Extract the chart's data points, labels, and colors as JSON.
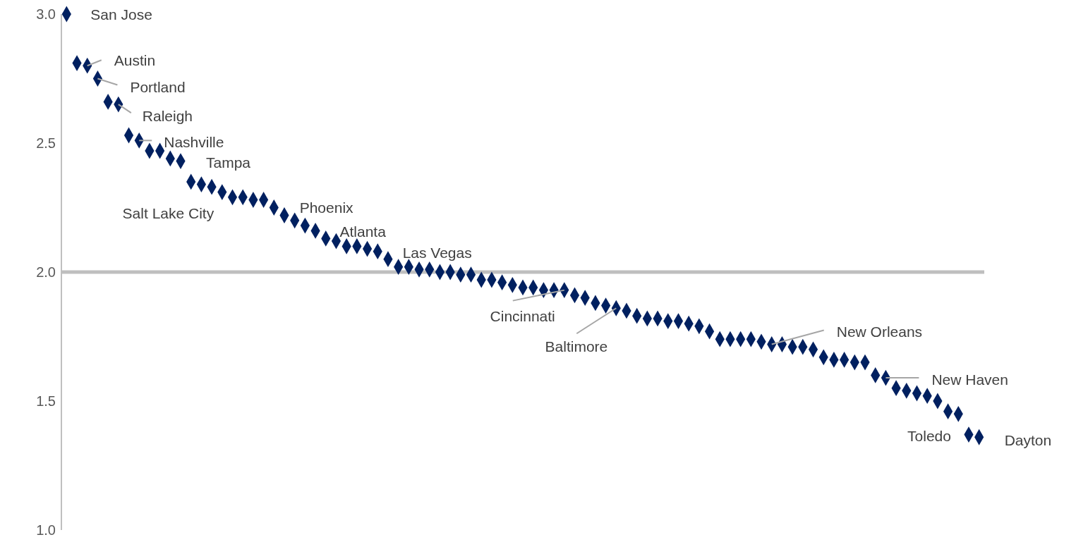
{
  "chart_data": {
    "type": "scatter",
    "categories": [
      null,
      null,
      null,
      null,
      null,
      null,
      null,
      null,
      null,
      null,
      null,
      null,
      null,
      null,
      null,
      null,
      null,
      null,
      null,
      null,
      null,
      null,
      null,
      null,
      null,
      null,
      null,
      null,
      null,
      null,
      null,
      null,
      null,
      null,
      null,
      null,
      null,
      null,
      null,
      null,
      null,
      null,
      null,
      null,
      null,
      null,
      null,
      null,
      null,
      null,
      null,
      null,
      null,
      null,
      null,
      null,
      null,
      null,
      null,
      null,
      null,
      null,
      null,
      null,
      null,
      null,
      null,
      null,
      null,
      null,
      null,
      null,
      null,
      null,
      null,
      null,
      null,
      null,
      null,
      null,
      null,
      null,
      null,
      null,
      null,
      null,
      null,
      null,
      null
    ],
    "series": [
      {
        "color": "#002060",
        "values": [
          3.0,
          2.81,
          2.8,
          2.75,
          2.66,
          2.65,
          2.53,
          2.51,
          2.47,
          2.47,
          2.44,
          2.43,
          2.35,
          2.34,
          2.33,
          2.31,
          2.29,
          2.29,
          2.28,
          2.28,
          2.25,
          2.22,
          2.2,
          2.18,
          2.16,
          2.13,
          2.12,
          2.1,
          2.1,
          2.09,
          2.08,
          2.05,
          2.02,
          2.02,
          2.01,
          2.01,
          2.0,
          2.0,
          1.99,
          1.99,
          1.97,
          1.97,
          1.96,
          1.95,
          1.94,
          1.94,
          1.93,
          1.93,
          1.93,
          1.91,
          1.9,
          1.88,
          1.87,
          1.86,
          1.85,
          1.83,
          1.82,
          1.82,
          1.81,
          1.81,
          1.8,
          1.79,
          1.77,
          1.74,
          1.74,
          1.74,
          1.74,
          1.73,
          1.72,
          1.72,
          1.71,
          1.71,
          1.7,
          1.67,
          1.66,
          1.66,
          1.65,
          1.65,
          1.6,
          1.59,
          1.55,
          1.54,
          1.53,
          1.52,
          1.5,
          1.46,
          1.45,
          1.37,
          1.36
        ],
        "value_labels": [
          "San Jose",
          null,
          "Austin",
          "Portland",
          null,
          "Raleigh",
          null,
          "Nashville",
          null,
          null,
          null,
          "Tampa",
          null,
          "Salt Lake City",
          null,
          null,
          null,
          null,
          null,
          null,
          null,
          null,
          "Phoenix",
          null,
          null,
          null,
          "Atlanta",
          null,
          null,
          null,
          null,
          null,
          "Las Vegas",
          null,
          null,
          null,
          null,
          null,
          null,
          null,
          null,
          null,
          null,
          null,
          null,
          null,
          null,
          null,
          "Cincinnati",
          null,
          null,
          null,
          null,
          "Baltimore",
          null,
          null,
          null,
          null,
          null,
          null,
          null,
          null,
          null,
          null,
          null,
          null,
          null,
          null,
          "New Orleans",
          null,
          null,
          null,
          null,
          null,
          null,
          null,
          null,
          null,
          null,
          "New Haven",
          null,
          null,
          null,
          null,
          null,
          null,
          null,
          "Toledo",
          "Dayton"
        ]
      }
    ],
    "ylim": [
      1,
      3
    ],
    "yticks": [
      {
        "value": 1,
        "label": "1.0"
      },
      {
        "value": 1.5,
        "label": "1.5"
      },
      {
        "value": 2,
        "label": "2.0"
      },
      {
        "value": 2.5,
        "label": "2.5"
      },
      {
        "value": 3,
        "label": "3.0"
      }
    ],
    "ref_lines": [
      {
        "axis": "y",
        "value": 2,
        "color": "#bfbfbf"
      }
    ],
    "marker": "diamond"
  }
}
